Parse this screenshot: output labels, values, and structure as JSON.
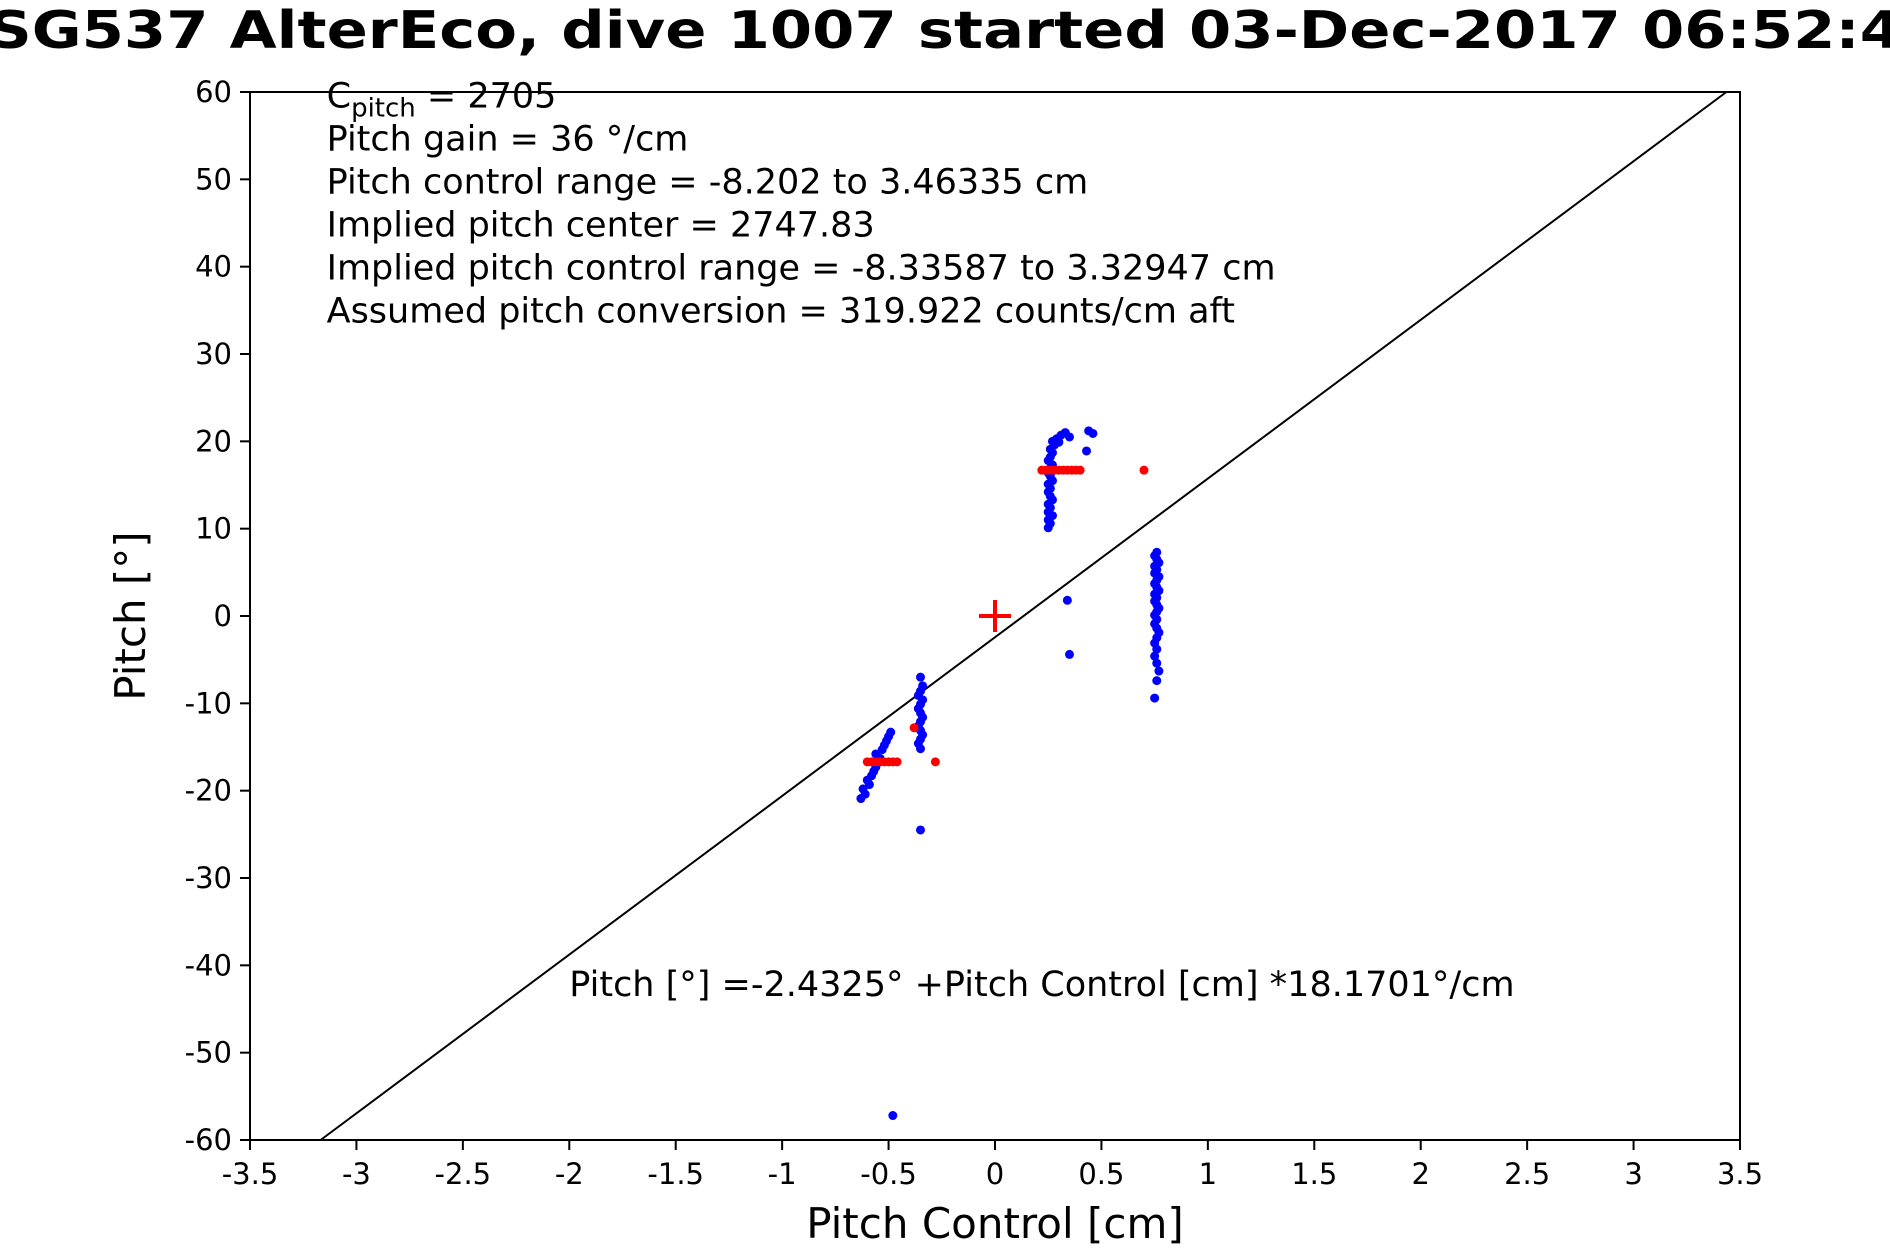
{
  "chart_data": {
    "type": "scatter",
    "title": "SG537 AlterEco, dive 1007 started 03-Dec-2017 06:52:4",
    "xlabel": "Pitch Control [cm]",
    "ylabel": "Pitch [°]",
    "xlim": [
      -3.5,
      3.5
    ],
    "ylim": [
      -60,
      60
    ],
    "xtick_labels": [
      "-3.5",
      "-3",
      "-2.5",
      "-2",
      "-1.5",
      "-1",
      "-0.5",
      "0",
      "0.5",
      "1",
      "1.5",
      "2",
      "2.5",
      "3",
      "3.5"
    ],
    "ytick_labels": [
      "-60",
      "-50",
      "-40",
      "-30",
      "-20",
      "-10",
      "0",
      "10",
      "20",
      "30",
      "40",
      "50",
      "60"
    ],
    "grid": false,
    "legend": "none",
    "colors": {
      "observed_points": "#0000ff",
      "commanded_points": "#ff0000",
      "fit_line": "#000000",
      "text": "#000000"
    },
    "fit_line": {
      "slope": 18.1701,
      "intercept": -2.4325
    },
    "annotations": {
      "info_pos": {
        "x": -3.14,
        "y": 58.2
      },
      "info_lines": [
        {
          "base": "C",
          "sub": "pitch",
          "rest": " = 2705"
        },
        "Pitch gain = 36 °/cm",
        "Pitch control range = -8.202 to 3.46335 cm",
        "Implied pitch center = 2747.83",
        "Implied pitch control range = -8.33587 to 3.32947 cm",
        "Assumed pitch conversion = 319.922 counts/cm aft"
      ],
      "fit_label": "Pitch [°] =-2.4325° +Pitch Control [cm] *18.1701°/cm",
      "fit_label_pos": {
        "x": -2.0,
        "y": -43.5
      }
    },
    "series": [
      {
        "name": "observed-pitch",
        "marker": "dot",
        "color": "#0000ff",
        "points": [
          [
            0.25,
            10.1
          ],
          [
            0.26,
            10.6
          ],
          [
            0.25,
            11.0
          ],
          [
            0.27,
            11.5
          ],
          [
            0.25,
            11.9
          ],
          [
            0.26,
            12.4
          ],
          [
            0.25,
            12.8
          ],
          [
            0.27,
            13.3
          ],
          [
            0.26,
            13.7
          ],
          [
            0.25,
            14.2
          ],
          [
            0.26,
            14.6
          ],
          [
            0.25,
            15.1
          ],
          [
            0.27,
            15.5
          ],
          [
            0.26,
            16.0
          ],
          [
            0.25,
            16.4
          ],
          [
            0.26,
            16.9
          ],
          [
            0.27,
            17.3
          ],
          [
            0.25,
            17.8
          ],
          [
            0.26,
            18.2
          ],
          [
            0.27,
            18.7
          ],
          [
            0.26,
            19.1
          ],
          [
            0.28,
            19.6
          ],
          [
            0.27,
            20.0
          ],
          [
            0.29,
            20.3
          ],
          [
            0.31,
            20.7
          ],
          [
            0.33,
            21.0
          ],
          [
            0.35,
            20.5
          ],
          [
            0.3,
            19.9
          ],
          [
            0.44,
            21.2
          ],
          [
            0.46,
            20.9
          ],
          [
            0.43,
            18.9
          ],
          [
            0.34,
            1.8
          ],
          [
            0.35,
            -4.4
          ],
          [
            0.76,
            7.3
          ],
          [
            0.75,
            6.9
          ],
          [
            0.76,
            6.5
          ],
          [
            0.77,
            6.1
          ],
          [
            0.75,
            5.7
          ],
          [
            0.76,
            5.3
          ],
          [
            0.75,
            4.9
          ],
          [
            0.77,
            4.5
          ],
          [
            0.76,
            4.1
          ],
          [
            0.75,
            3.7
          ],
          [
            0.76,
            3.3
          ],
          [
            0.77,
            2.9
          ],
          [
            0.75,
            2.5
          ],
          [
            0.76,
            2.1
          ],
          [
            0.75,
            1.7
          ],
          [
            0.76,
            1.3
          ],
          [
            0.77,
            0.9
          ],
          [
            0.76,
            0.5
          ],
          [
            0.75,
            0.1
          ],
          [
            0.76,
            -0.4
          ],
          [
            0.75,
            -0.9
          ],
          [
            0.76,
            -1.4
          ],
          [
            0.77,
            -1.9
          ],
          [
            0.76,
            -2.5
          ],
          [
            0.75,
            -3.1
          ],
          [
            0.76,
            -3.8
          ],
          [
            0.75,
            -4.6
          ],
          [
            0.76,
            -5.4
          ],
          [
            0.77,
            -6.3
          ],
          [
            0.76,
            -7.4
          ],
          [
            0.75,
            -9.4
          ],
          [
            -0.35,
            -7.0
          ],
          [
            -0.34,
            -8.0
          ],
          [
            -0.35,
            -8.6
          ],
          [
            -0.36,
            -9.1
          ],
          [
            -0.34,
            -9.6
          ],
          [
            -0.35,
            -10.1
          ],
          [
            -0.36,
            -10.6
          ],
          [
            -0.35,
            -11.1
          ],
          [
            -0.34,
            -11.6
          ],
          [
            -0.35,
            -12.1
          ],
          [
            -0.36,
            -12.6
          ],
          [
            -0.35,
            -13.1
          ],
          [
            -0.34,
            -13.6
          ],
          [
            -0.35,
            -14.1
          ],
          [
            -0.36,
            -14.6
          ],
          [
            -0.35,
            -15.2
          ],
          [
            -0.35,
            -24.5
          ],
          [
            -0.63,
            -20.9
          ],
          [
            -0.61,
            -20.4
          ],
          [
            -0.62,
            -19.8
          ],
          [
            -0.59,
            -19.3
          ],
          [
            -0.6,
            -18.8
          ],
          [
            -0.58,
            -18.3
          ],
          [
            -0.57,
            -17.8
          ],
          [
            -0.56,
            -17.3
          ],
          [
            -0.55,
            -16.8
          ],
          [
            -0.54,
            -16.3
          ],
          [
            -0.56,
            -15.8
          ],
          [
            -0.53,
            -15.3
          ],
          [
            -0.52,
            -14.8
          ],
          [
            -0.51,
            -14.3
          ],
          [
            -0.5,
            -13.8
          ],
          [
            -0.49,
            -13.3
          ],
          [
            -0.48,
            -57.2
          ]
        ]
      },
      {
        "name": "commanded-pitch",
        "marker": "dot",
        "color": "#ff0000",
        "points": [
          [
            0.22,
            16.7
          ],
          [
            0.24,
            16.7
          ],
          [
            0.26,
            16.7
          ],
          [
            0.28,
            16.7
          ],
          [
            0.3,
            16.7
          ],
          [
            0.32,
            16.7
          ],
          [
            0.34,
            16.7
          ],
          [
            0.36,
            16.7
          ],
          [
            0.38,
            16.7
          ],
          [
            0.4,
            16.7
          ],
          [
            0.7,
            16.7
          ],
          [
            -0.6,
            -16.7
          ],
          [
            -0.58,
            -16.7
          ],
          [
            -0.56,
            -16.7
          ],
          [
            -0.54,
            -16.7
          ],
          [
            -0.52,
            -16.7
          ],
          [
            -0.5,
            -16.7
          ],
          [
            -0.48,
            -16.7
          ],
          [
            -0.46,
            -16.7
          ],
          [
            -0.28,
            -16.7
          ],
          [
            -0.38,
            -12.8
          ]
        ]
      },
      {
        "name": "pitch-center",
        "marker": "plus",
        "color": "#ff0000",
        "points": [
          [
            0,
            0
          ]
        ]
      }
    ]
  }
}
